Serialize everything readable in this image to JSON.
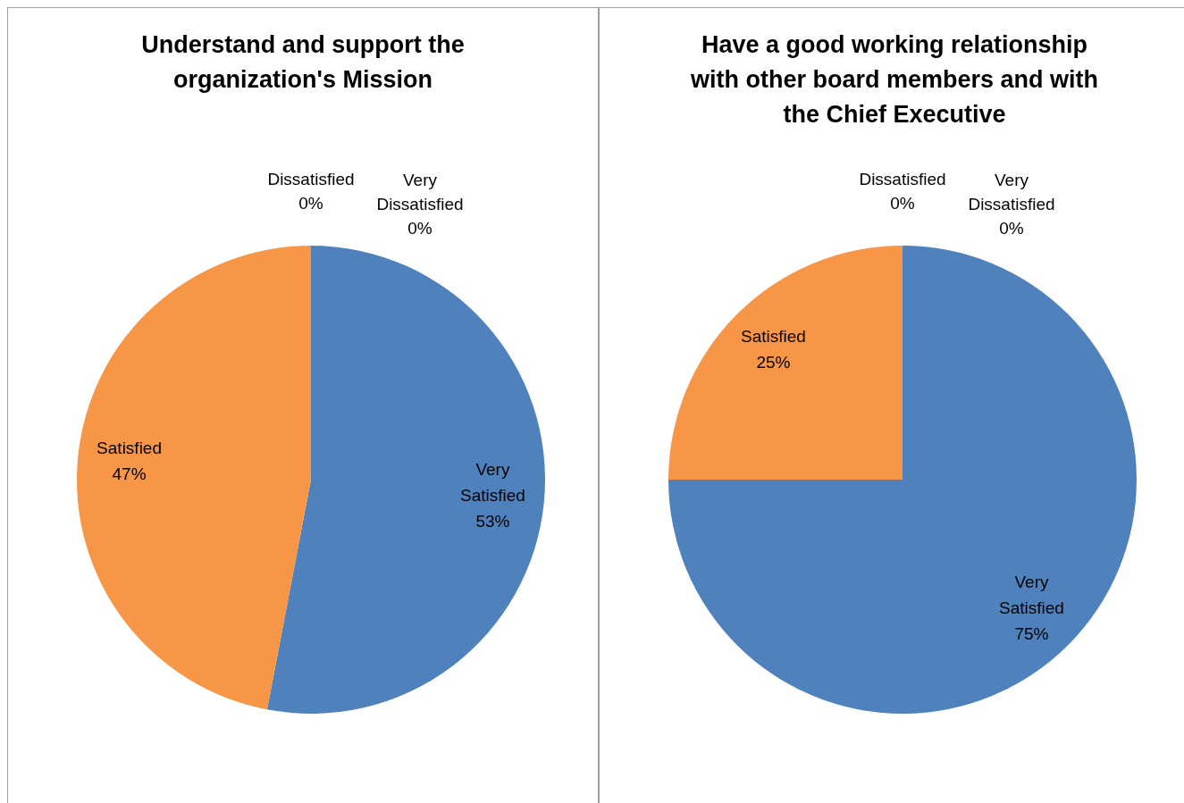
{
  "chart_data": [
    {
      "type": "pie",
      "title": "Understand and support the organization's Mission",
      "categories": [
        "Very Satisfied",
        "Satisfied",
        "Dissatisfied",
        "Very Dissatisfied"
      ],
      "values": [
        53,
        47,
        0,
        0
      ],
      "value_labels": [
        "53%",
        "47%",
        "0%",
        "0%"
      ],
      "colors": [
        "#4f81bd",
        "#f79646",
        "#9bbb59",
        "#8064a2"
      ],
      "legend": false
    },
    {
      "type": "pie",
      "title": "Have a good working relationship with other board members and with the Chief Executive",
      "categories": [
        "Very Satisfied",
        "Satisfied",
        "Dissatisfied",
        "Very Dissatisfied"
      ],
      "values": [
        75,
        25,
        0,
        0
      ],
      "value_labels": [
        "75%",
        "25%",
        "0%",
        "0%"
      ],
      "colors": [
        "#4f81bd",
        "#f79646",
        "#9bbb59",
        "#8064a2"
      ],
      "legend": false
    }
  ]
}
